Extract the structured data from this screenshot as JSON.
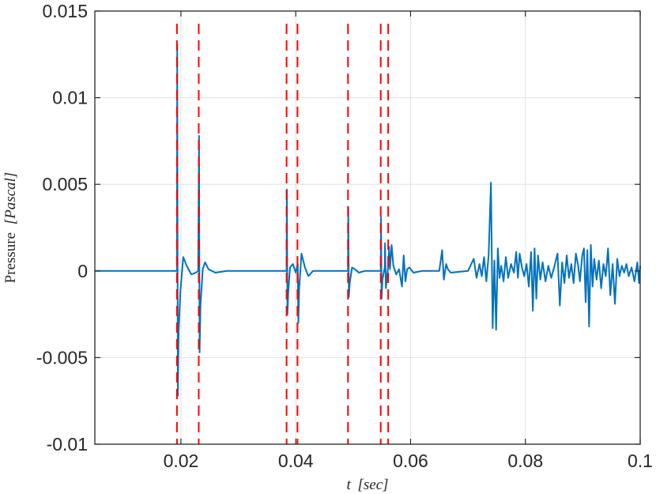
{
  "chart_data": {
    "type": "line",
    "xlabel": {
      "var": "t",
      "unit": "[sec]"
    },
    "ylabel": {
      "text": "Pressure",
      "unit": "[Pascal]"
    },
    "xlim": [
      0.005,
      0.1
    ],
    "ylim": [
      -0.01,
      0.015
    ],
    "grid": true,
    "x_ticks": [
      {
        "value": 0.02,
        "label": "0.02"
      },
      {
        "value": 0.04,
        "label": "0.04"
      },
      {
        "value": 0.06,
        "label": "0.06"
      },
      {
        "value": 0.08,
        "label": "0.08"
      },
      {
        "value": 0.1,
        "label": "0.1"
      }
    ],
    "y_ticks": [
      {
        "value": -0.01,
        "label": "-0.01"
      },
      {
        "value": -0.005,
        "label": "-0.005"
      },
      {
        "value": 0,
        "label": "0"
      },
      {
        "value": 0.005,
        "label": "0.005"
      },
      {
        "value": 0.01,
        "label": "0.01"
      },
      {
        "value": 0.015,
        "label": "0.015"
      }
    ],
    "series": [
      {
        "color": "#0072BD",
        "points": [
          [
            0.005,
            0
          ],
          [
            0.0193,
            0
          ],
          [
            0.01935,
            0.0131
          ],
          [
            0.01945,
            -0.0072
          ],
          [
            0.0196,
            -0.0035
          ],
          [
            0.0199,
            -0.0012
          ],
          [
            0.0204,
            0.0008
          ],
          [
            0.021,
            0.0003
          ],
          [
            0.0218,
            -0.0002
          ],
          [
            0.0226,
            -0.0001
          ],
          [
            0.023,
            0
          ],
          [
            0.02315,
            0.0078
          ],
          [
            0.02325,
            -0.0047
          ],
          [
            0.0234,
            -0.002
          ],
          [
            0.0238,
            0.0001
          ],
          [
            0.0242,
            0.0005
          ],
          [
            0.0248,
            0.0001
          ],
          [
            0.026,
            -0.0001
          ],
          [
            0.028,
            0
          ],
          [
            0.0384,
            0
          ],
          [
            0.03845,
            0.0047
          ],
          [
            0.03855,
            -0.0025
          ],
          [
            0.0387,
            -0.0012
          ],
          [
            0.039,
            0.0002
          ],
          [
            0.0395,
            0.0004
          ],
          [
            0.04,
            -0.0001
          ],
          [
            0.04035,
            0.0004
          ],
          [
            0.04045,
            -0.003
          ],
          [
            0.0406,
            -0.001
          ],
          [
            0.041,
            0.001
          ],
          [
            0.0416,
            0.0002
          ],
          [
            0.0422,
            -0.0003
          ],
          [
            0.043,
            0
          ],
          [
            0.046,
            0
          ],
          [
            0.0491,
            0
          ],
          [
            0.04915,
            0.0037
          ],
          [
            0.04925,
            -0.0015
          ],
          [
            0.0494,
            -0.0007
          ],
          [
            0.0498,
            0.0002
          ],
          [
            0.0503,
            0.0001
          ],
          [
            0.051,
            -0.0001
          ],
          [
            0.052,
            0
          ],
          [
            0.0548,
            0
          ],
          [
            0.05485,
            0.0031
          ],
          [
            0.05495,
            -0.0016
          ],
          [
            0.0551,
            -0.0005
          ],
          [
            0.0555,
            0.0002
          ],
          [
            0.05555,
            0.0016
          ],
          [
            0.0557,
            -0.001
          ],
          [
            0.0562,
            0.0006
          ],
          [
            0.05625,
            0.0014
          ],
          [
            0.0564,
            0.0001
          ],
          [
            0.0567,
            0.0015
          ],
          [
            0.057,
            0.0003
          ],
          [
            0.0575,
            -0.0002
          ],
          [
            0.058,
            0.0001
          ],
          [
            0.0585,
            -0.0009
          ],
          [
            0.0588,
            0.0009
          ],
          [
            0.0591,
            -0.0006
          ],
          [
            0.0594,
            0.0001
          ],
          [
            0.0598,
            0.0002
          ],
          [
            0.0605,
            -0.0001
          ],
          [
            0.062,
            0
          ],
          [
            0.065,
            0
          ],
          [
            0.0655,
            0.0012
          ],
          [
            0.0658,
            -0.0005
          ],
          [
            0.0662,
            0.0004
          ],
          [
            0.0665,
            0.0001
          ],
          [
            0.067,
            -0.0001
          ],
          [
            0.07,
            0
          ],
          [
            0.071,
            0.0007
          ],
          [
            0.0715,
            -0.0004
          ],
          [
            0.072,
            0.0004
          ],
          [
            0.0724,
            -0.0003
          ],
          [
            0.0728,
            0.0008
          ],
          [
            0.0732,
            -0.0006
          ],
          [
            0.0736,
            0.0009
          ],
          [
            0.074,
            0.0051
          ],
          [
            0.0743,
            -0.0033
          ],
          [
            0.0746,
            0.0006
          ],
          [
            0.0749,
            -0.0034
          ],
          [
            0.0752,
            0.0013
          ],
          [
            0.0755,
            -0.0004
          ],
          [
            0.0758,
            0.0003
          ],
          [
            0.0762,
            -0.0006
          ],
          [
            0.0766,
            0.0008
          ],
          [
            0.077,
            -0.0004
          ],
          [
            0.0775,
            0.0004
          ],
          [
            0.078,
            -0.0001
          ],
          [
            0.0784,
            0.0011
          ],
          [
            0.0787,
            -0.0004
          ],
          [
            0.079,
            0.001
          ],
          [
            0.0794,
            0.0002
          ],
          [
            0.0798,
            -0.0003
          ],
          [
            0.0802,
            0.0004
          ],
          [
            0.0806,
            -0.0009
          ],
          [
            0.081,
            0.0011
          ],
          [
            0.0813,
            -0.0023
          ],
          [
            0.0816,
            0.0013
          ],
          [
            0.0819,
            -0.0016
          ],
          [
            0.0822,
            0.0009
          ],
          [
            0.0826,
            -0.0005
          ],
          [
            0.083,
            0.0005
          ],
          [
            0.0835,
            -0.0006
          ],
          [
            0.084,
            0.0003
          ],
          [
            0.0845,
            -0.0004
          ],
          [
            0.085,
            0.0002
          ],
          [
            0.0856,
            0.001
          ],
          [
            0.086,
            -0.002
          ],
          [
            0.0864,
            0.0005
          ],
          [
            0.0868,
            -0.0007
          ],
          [
            0.0872,
            0.0009
          ],
          [
            0.0876,
            -0.0004
          ],
          [
            0.088,
            0.0004
          ],
          [
            0.0884,
            -0.0007
          ],
          [
            0.0888,
            0.001
          ],
          [
            0.0892,
            0.0003
          ],
          [
            0.0895,
            -0.0006
          ],
          [
            0.0899,
            0.0009
          ],
          [
            0.0902,
            0.0013
          ],
          [
            0.0905,
            -0.0018
          ],
          [
            0.0908,
            0.0012
          ],
          [
            0.0911,
            -0.0032
          ],
          [
            0.0914,
            0.0015
          ],
          [
            0.0917,
            -0.0009
          ],
          [
            0.092,
            0.0007
          ],
          [
            0.0924,
            -0.0005
          ],
          [
            0.0928,
            0.0006
          ],
          [
            0.0932,
            -0.001
          ],
          [
            0.0936,
            0.0004
          ],
          [
            0.094,
            -0.0003
          ],
          [
            0.0944,
            0.0013
          ],
          [
            0.0948,
            -0.0014
          ],
          [
            0.0952,
            0.0004
          ],
          [
            0.0956,
            -0.0019
          ],
          [
            0.096,
            0.0007
          ],
          [
            0.0964,
            -0.0003
          ],
          [
            0.0968,
            0.0003
          ],
          [
            0.0972,
            -0.0001
          ],
          [
            0.0976,
            0.0004
          ],
          [
            0.098,
            -0.0003
          ],
          [
            0.0985,
            0.0002
          ],
          [
            0.099,
            -0.0006
          ],
          [
            0.0995,
            0.0005
          ],
          [
            0.0998,
            -0.0007
          ],
          [
            0.1,
            0.0003
          ]
        ]
      }
    ],
    "event_lines": {
      "color": "#FF0000",
      "x": [
        0.0193,
        0.0231,
        0.0384,
        0.0403,
        0.0491,
        0.0548,
        0.0561
      ]
    }
  }
}
